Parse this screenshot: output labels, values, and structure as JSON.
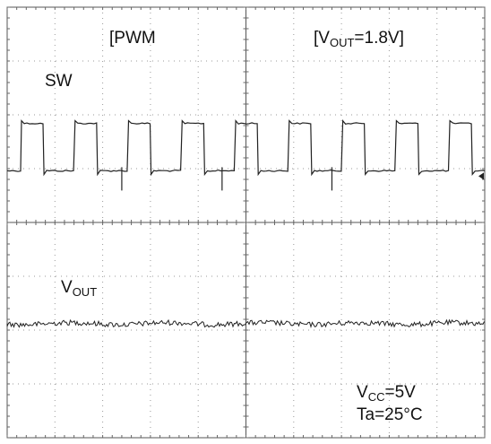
{
  "labels": {
    "mode": "[PWM",
    "vout_setting": {
      "prefix": "[V",
      "sub": "OUT",
      "suffix": "=1.8V]"
    },
    "ch1": "SW",
    "ch2": {
      "prefix": "V",
      "sub": "OUT"
    },
    "vcc": {
      "prefix": "V",
      "sub": "CC",
      "suffix": "=5V"
    },
    "ta": "Ta=25°C"
  },
  "chart_data": {
    "type": "line",
    "grid": true,
    "divisions": {
      "x": 10,
      "y": 8
    },
    "series": [
      {
        "name": "SW",
        "kind": "square",
        "periods": 9,
        "duty": 0.42,
        "high": 0.73,
        "low": 0.62,
        "color": "#222222"
      },
      {
        "name": "VOUT",
        "kind": "noise",
        "level": 0.265,
        "amplitude": 0.006,
        "color": "#222222"
      }
    ]
  }
}
